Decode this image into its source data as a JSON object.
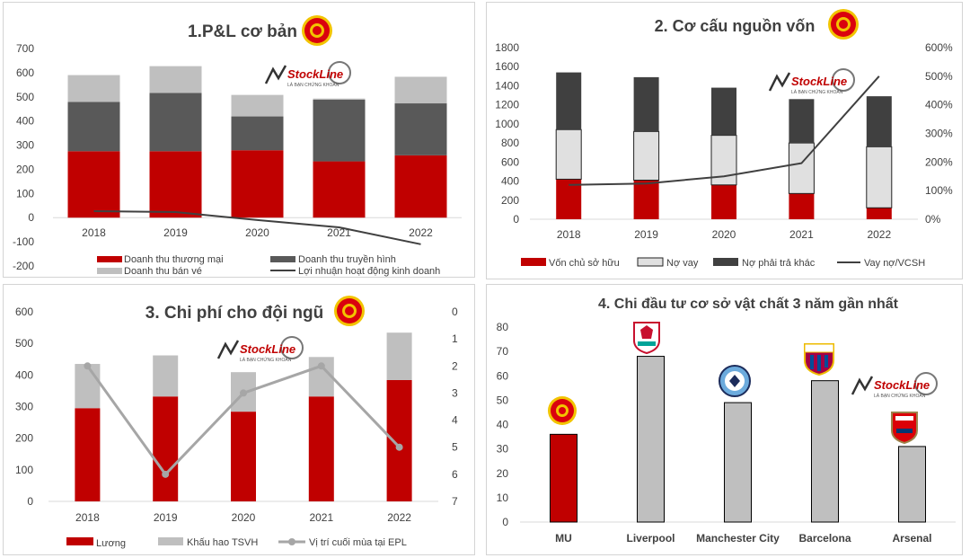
{
  "colors": {
    "red": "#c00000",
    "darkgray": "#595959",
    "lightgray": "#bfbfbf",
    "line": "#404040",
    "epl_line": "#a6a6a6",
    "frame": "#d4d4d4"
  },
  "watermark": {
    "brand": "StockLine",
    "tagline": "LÀ BẠN CHỨNG KHOÁN"
  },
  "chart_data": [
    {
      "id": "pl",
      "type": "bar",
      "stacked": true,
      "title": "1.P&L cơ bản",
      "categories": [
        "2018",
        "2019",
        "2020",
        "2021",
        "2022"
      ],
      "y_ticks": [
        "700",
        "600",
        "500",
        "400",
        "300",
        "200",
        "100",
        "0",
        "-100",
        "-200"
      ],
      "ylim": [
        -200,
        700
      ],
      "series": [
        {
          "name": "Doanh thu thương mại",
          "values": [
            275,
            275,
            279,
            233,
            258
          ]
        },
        {
          "name": "Doanh thu truyền hình",
          "values": [
            204,
            241,
            140,
            255,
            215
          ]
        },
        {
          "name": "Doanh thu bán vé",
          "values": [
            111,
            111,
            89,
            5,
            110
          ]
        }
      ],
      "line": {
        "name": "Lợi nhuận hoạt động kinh doanh",
        "values": [
          27,
          23,
          -10,
          -40,
          -110
        ]
      },
      "legend": "bottom"
    },
    {
      "id": "capital",
      "type": "bar",
      "stacked": true,
      "title": "2. Cơ cấu nguồn vốn",
      "categories": [
        "2018",
        "2019",
        "2020",
        "2021",
        "2022"
      ],
      "y_ticks": [
        "1800",
        "1600",
        "1400",
        "1200",
        "1000",
        "800",
        "600",
        "400",
        "200",
        "0"
      ],
      "y2_ticks": [
        "600%",
        "500%",
        "400%",
        "300%",
        "200%",
        "100%",
        "0%"
      ],
      "ylim": [
        0,
        1800
      ],
      "y2lim": [
        0,
        6
      ],
      "series": [
        {
          "name": "Vốn chủ sở hữu",
          "values": [
            420,
            410,
            360,
            270,
            120
          ]
        },
        {
          "name": "Nợ vay",
          "values": [
            520,
            510,
            520,
            530,
            640
          ]
        },
        {
          "name": "Nợ phải trả khác",
          "values": [
            600,
            570,
            500,
            460,
            530
          ]
        }
      ],
      "line": {
        "name": "Vay nợ/VCSH",
        "values": [
          1.2,
          1.25,
          1.5,
          1.96,
          5.0
        ]
      },
      "legend": "bottom"
    },
    {
      "id": "squad",
      "type": "bar",
      "stacked": true,
      "title": "3. Chi phí cho đội ngũ",
      "categories": [
        "2018",
        "2019",
        "2020",
        "2021",
        "2022"
      ],
      "y_ticks": [
        "600",
        "500",
        "400",
        "300",
        "200",
        "100",
        "0"
      ],
      "y2_ticks": [
        "0",
        "1",
        "2",
        "3",
        "4",
        "5",
        "6",
        "7"
      ],
      "ylim": [
        0,
        600
      ],
      "y2lim": [
        7,
        0
      ],
      "series": [
        {
          "name": "Lương",
          "values": [
            295,
            332,
            284,
            332,
            384
          ]
        },
        {
          "name": "Khấu hao TSVH",
          "values": [
            140,
            130,
            125,
            125,
            150
          ]
        }
      ],
      "line": {
        "name": "Vị trí cuối mùa tại EPL",
        "values": [
          2,
          6,
          3,
          2,
          5
        ]
      },
      "legend": "bottom"
    },
    {
      "id": "infra",
      "type": "bar",
      "title": "4. Chi đầu tư cơ sở vật chất 3 năm gần nhất",
      "categories": [
        "MU",
        "Liverpool",
        "Manchester City",
        "Barcelona",
        "Arsenal"
      ],
      "y_ticks": [
        "80",
        "70",
        "60",
        "50",
        "40",
        "30",
        "20",
        "10",
        "0"
      ],
      "ylim": [
        0,
        80
      ],
      "values": [
        36,
        68,
        49,
        58,
        31
      ]
    }
  ]
}
